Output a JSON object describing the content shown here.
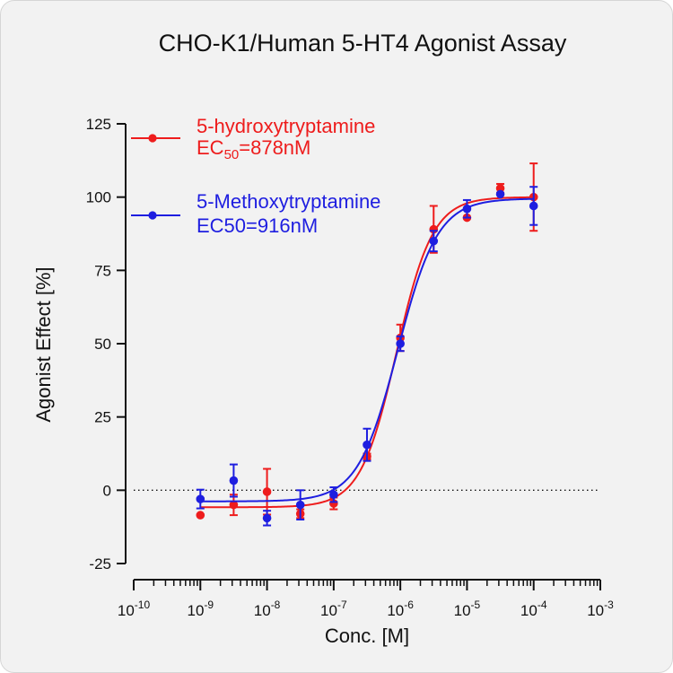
{
  "chart_data": {
    "type": "scatter",
    "title": "CHO-K1/Human 5-HT4 Agonist Assay",
    "xlabel": "Conc. [M]",
    "ylabel": "Agonist Effect [%]",
    "x_scale": "log10",
    "xlim_exponent": [
      -10,
      -3
    ],
    "x_tick_base": "10",
    "x_tick_exponents": [
      "-10",
      "-9",
      "-8",
      "-7",
      "-6",
      "-5",
      "-4",
      "-3"
    ],
    "ylim": [
      -25,
      125
    ],
    "y_ticks": [
      "-25",
      "0",
      "25",
      "50",
      "75",
      "100",
      "125"
    ],
    "y_tick_values": [
      -25,
      0,
      25,
      50,
      75,
      100,
      125
    ],
    "reference_line": {
      "y": 0,
      "style": "dotted"
    },
    "grid": false,
    "legend_position": "top-left",
    "series": [
      {
        "name_line1": "5-hydroxytryptamine",
        "name_line2_prefix": "EC",
        "name_line2_sub": "50",
        "name_line2_suffix": "=878nM",
        "color": "#ee1c1c",
        "points": [
          {
            "x": "1e-9",
            "y": -8.5,
            "err": 0
          },
          {
            "x": "3.16e-9",
            "y": -5,
            "err": 3.5
          },
          {
            "x": "1e-8",
            "y": -0.5,
            "err": 7.8
          },
          {
            "x": "3.16e-8",
            "y": -8,
            "err": 1.5
          },
          {
            "x": "1e-7",
            "y": -4.5,
            "err": 2
          },
          {
            "x": "3.16e-7",
            "y": 11.5,
            "err": 1
          },
          {
            "x": "1e-6",
            "y": 52,
            "err": 4.5
          },
          {
            "x": "3.16e-6",
            "y": 89,
            "err": 8
          },
          {
            "x": "1e-5",
            "y": 93,
            "err": 0
          },
          {
            "x": "3.16e-5",
            "y": 103,
            "err": 1.5
          },
          {
            "x": "1e-4",
            "y": 100,
            "err": 11.5
          }
        ],
        "fit": {
          "bottom": -5.8,
          "top": 100,
          "ec50": "8.78e-7",
          "hill": 1.6
        }
      },
      {
        "name_line1": "5-Methoxytryptamine",
        "name_line2": "EC50=916nM",
        "color": "#1e1ee0",
        "points": [
          {
            "x": "1e-9",
            "y": -3,
            "err": 3.2
          },
          {
            "x": "3.16e-9",
            "y": 3.3,
            "err": 5.5
          },
          {
            "x": "1e-8",
            "y": -9.5,
            "err": 2.5
          },
          {
            "x": "3.16e-8",
            "y": -5,
            "err": 5
          },
          {
            "x": "1e-7",
            "y": -1.5,
            "err": 2.5
          },
          {
            "x": "3.16e-7",
            "y": 15.5,
            "err": 5.5
          },
          {
            "x": "1e-6",
            "y": 50,
            "err": 2.5
          },
          {
            "x": "3.16e-6",
            "y": 85,
            "err": 3.5
          },
          {
            "x": "1e-5",
            "y": 96,
            "err": 3
          },
          {
            "x": "3.16e-5",
            "y": 101,
            "err": 0
          },
          {
            "x": "1e-4",
            "y": 97,
            "err": 6.5
          }
        ],
        "fit": {
          "bottom": -3.8,
          "top": 99.5,
          "ec50": "9.16e-7",
          "hill": 1.45
        }
      }
    ]
  }
}
